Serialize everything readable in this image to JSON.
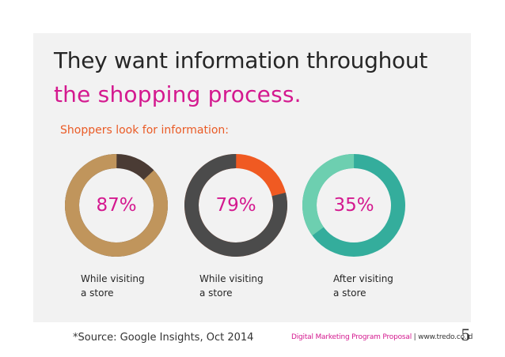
{
  "slide": {
    "title_line1": "They want information throughout",
    "title_line2": "the shopping process.",
    "subtitle": "Shoppers look for information:",
    "source": "*Source: Google Insights, Oct 2014",
    "footer_text": "Digital Marketing Program Proposal",
    "footer_separator": " | ",
    "footer_url": "www.tredo.co.id",
    "page_number": "5"
  },
  "chart_data": {
    "type": "pie",
    "title": "Shoppers look for information:",
    "series": [
      {
        "name": "While visiting a store",
        "value": 87,
        "label": "87%",
        "caption_line1": "While visiting",
        "caption_line2": "a store",
        "fill_color": "#c0955c",
        "remainder_color": "#4a3b34"
      },
      {
        "name": "While visiting a store",
        "value": 79,
        "label": "79%",
        "caption_line1": "While visiting",
        "caption_line2": "a store",
        "fill_color": "#4b4b4b",
        "remainder_color": "#f05a22"
      },
      {
        "name": "After visiting a store",
        "value": 35,
        "label": "35%",
        "caption_line1": "After visiting",
        "caption_line2": "a store",
        "fill_color": "#6dcfb0",
        "remainder_color": "#34ad9c"
      }
    ]
  }
}
